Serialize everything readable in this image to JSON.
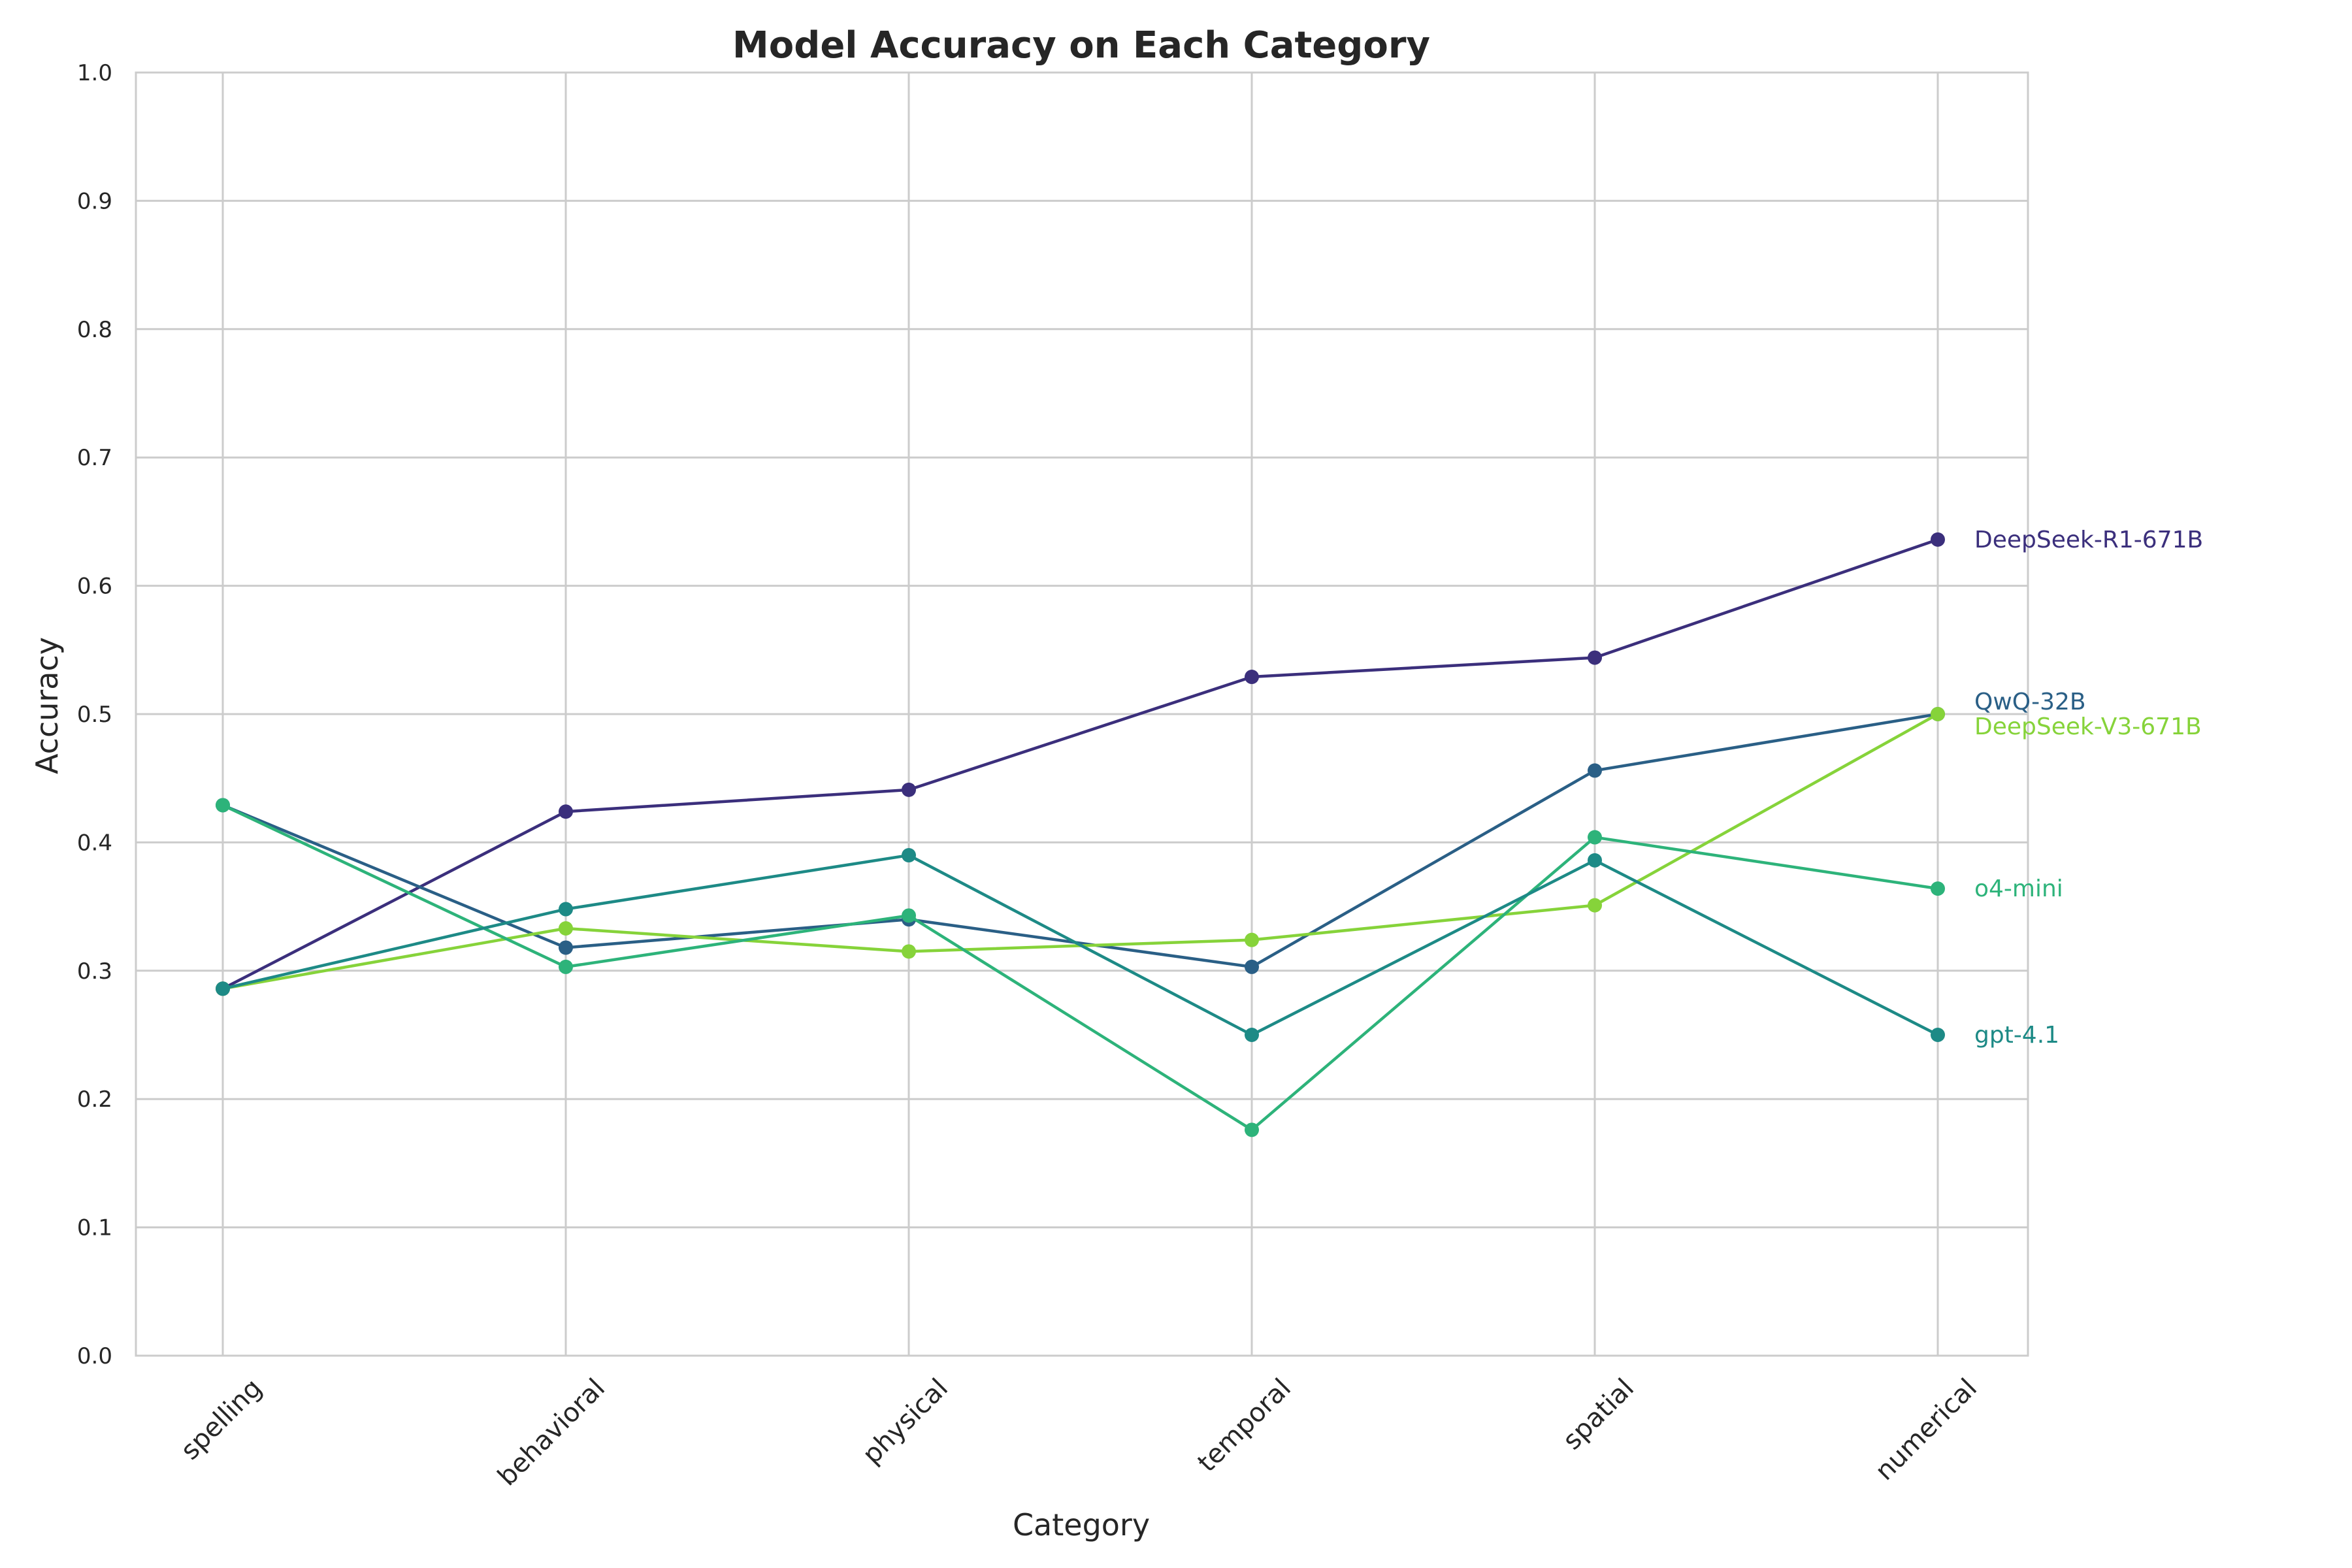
{
  "chart_data": {
    "type": "line",
    "title": "Model Accuracy on Each Category",
    "xlabel": "Category",
    "ylabel": "Accuracy",
    "ylim": [
      0.0,
      1.0
    ],
    "yticks": [
      "0.0",
      "0.1",
      "0.2",
      "0.3",
      "0.4",
      "0.5",
      "0.6",
      "0.7",
      "0.8",
      "0.9",
      "1.0"
    ],
    "grid": true,
    "legend": "direct labels at right end of each line",
    "categories": [
      "spelling",
      "behavioral",
      "physical",
      "temporal",
      "spatial",
      "numerical"
    ],
    "series": [
      {
        "name": "DeepSeek-R1-671B",
        "color": "#3b2f7c",
        "values": [
          0.286,
          0.424,
          0.441,
          0.529,
          0.544,
          0.636
        ]
      },
      {
        "name": "QwQ-32B",
        "color": "#2a5f86",
        "values": [
          0.429,
          0.318,
          0.34,
          0.303,
          0.456,
          0.5
        ]
      },
      {
        "name": "DeepSeek-V3-671B",
        "color": "#86d33a",
        "values": [
          0.286,
          0.333,
          0.315,
          0.324,
          0.351,
          0.5
        ]
      },
      {
        "name": "o4-mini",
        "color": "#2db37a",
        "values": [
          0.429,
          0.303,
          0.343,
          0.176,
          0.404,
          0.364
        ]
      },
      {
        "name": "gpt-4.1",
        "color": "#1d8a86",
        "values": [
          0.286,
          0.348,
          0.39,
          0.25,
          0.386,
          0.25
        ]
      }
    ]
  }
}
